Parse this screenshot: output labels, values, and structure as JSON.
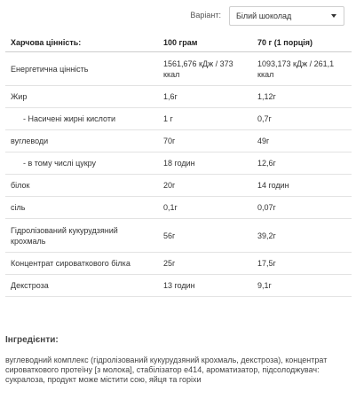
{
  "variant": {
    "label": "Варіант:",
    "selected": "Білий шоколад",
    "icon": "chevron-down-icon"
  },
  "table": {
    "headers": [
      "Харчова цінність:",
      "100 грам",
      "70 г (1 порція)"
    ],
    "rows": [
      {
        "name": "Енергетична цінність",
        "v100": "1561,676 кДж / 373 ккал",
        "vportion": "1093,173 кДж / 261,1 ккал",
        "indent": false
      },
      {
        "name": "Жир",
        "v100": "1,6г",
        "vportion": "1,12г",
        "indent": false
      },
      {
        "name": "- Насичені жирні кислоти",
        "v100": "1 г",
        "vportion": "0,7г",
        "indent": true
      },
      {
        "name": "вуглеводи",
        "v100": "70г",
        "vportion": "49г",
        "indent": false
      },
      {
        "name": "- в тому числі цукру",
        "v100": "18 годин",
        "vportion": "12,6г",
        "indent": true
      },
      {
        "name": "білок",
        "v100": "20г",
        "vportion": "14 годин",
        "indent": false
      },
      {
        "name": "сіль",
        "v100": "0,1г",
        "vportion": "0,07г",
        "indent": false
      },
      {
        "name": "Гідролізований кукурудзяний крохмаль",
        "v100": "56г",
        "vportion": "39,2г",
        "indent": false
      },
      {
        "name": "Концентрат сироваткового білка",
        "v100": "25г",
        "vportion": "17,5г",
        "indent": false
      },
      {
        "name": "Декстроза",
        "v100": "13 годин",
        "vportion": "9,1г",
        "indent": false
      }
    ]
  },
  "ingredients": {
    "title": "Інгредієнти:",
    "text": "вуглеводний комплекс (гідролізований кукурудзяний крохмаль, декстроза), концентрат сироваткового протеїну [з молока], стабілізатор е414, ароматизатор, підсолоджувач: сукралоза, продукт може містити сою, яйця та горіхи"
  }
}
